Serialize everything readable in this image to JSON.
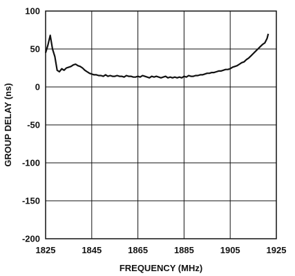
{
  "chart_data": {
    "type": "line",
    "title": "",
    "xlabel": "FREQUENCY (MHz)",
    "ylabel": "GROUP DELAY (ns)",
    "xlim": [
      1825,
      1925
    ],
    "ylim": [
      -200,
      100
    ],
    "xticks": [
      "1825",
      "1845",
      "1865",
      "1885",
      "1905",
      "1925"
    ],
    "yticks": [
      "100",
      "50",
      "0",
      "-50",
      "-100",
      "-150",
      "-200"
    ],
    "grid": true,
    "line_color": "#111111",
    "series": [
      {
        "x": [
          1825,
          1826,
          1827,
          1828,
          1829,
          1830,
          1831,
          1832,
          1833,
          1834,
          1835,
          1836,
          1837,
          1838,
          1839,
          1840,
          1841,
          1842,
          1843,
          1844,
          1845,
          1846,
          1847,
          1848,
          1849,
          1850,
          1851,
          1852,
          1853,
          1854,
          1855,
          1856,
          1857,
          1858,
          1859,
          1860,
          1861,
          1862,
          1863,
          1864,
          1865,
          1866,
          1867,
          1868,
          1869,
          1870,
          1871,
          1872,
          1873,
          1874,
          1875,
          1876,
          1877,
          1878,
          1879,
          1880,
          1881,
          1882,
          1883,
          1884,
          1885,
          1886,
          1887,
          1888,
          1889,
          1890,
          1891,
          1892,
          1893,
          1894,
          1895,
          1896,
          1897,
          1898,
          1899,
          1900,
          1901,
          1902,
          1903,
          1904,
          1905,
          1906,
          1907,
          1908,
          1909,
          1910,
          1911,
          1912,
          1913,
          1914,
          1915,
          1916,
          1917,
          1918,
          1919,
          1920,
          1921,
          1921.5
        ],
        "y": [
          45,
          55,
          68,
          50,
          40,
          22,
          20,
          24,
          22,
          25,
          26,
          27,
          29,
          30,
          28,
          27,
          25,
          22,
          20,
          18,
          17,
          16,
          16,
          15,
          15,
          14,
          16,
          14,
          15,
          14,
          14,
          15,
          14,
          14,
          13,
          15,
          14,
          14,
          13,
          13,
          14,
          13,
          15,
          14,
          13,
          12,
          14,
          13,
          14,
          13,
          12,
          13,
          14,
          12,
          13,
          12,
          13,
          12,
          13,
          12,
          14,
          13,
          15,
          14,
          14,
          15,
          15,
          16,
          16,
          17,
          18,
          18,
          19,
          19,
          20,
          21,
          21,
          22,
          23,
          23,
          24,
          26,
          27,
          28,
          30,
          32,
          33,
          36,
          38,
          41,
          44,
          47,
          50,
          53,
          56,
          58,
          64,
          70
        ]
      }
    ]
  }
}
